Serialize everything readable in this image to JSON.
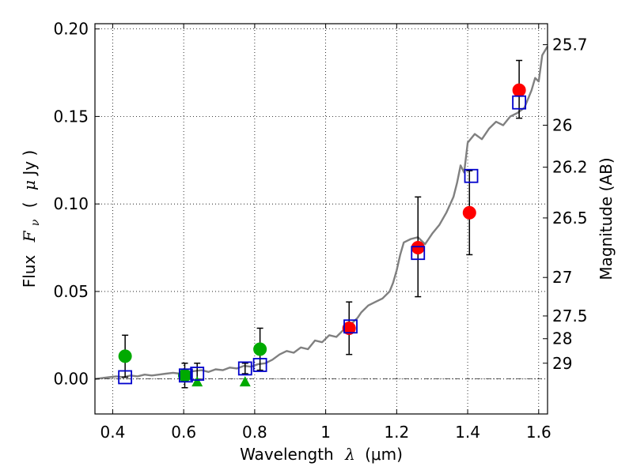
{
  "chart_data": {
    "type": "scatter",
    "xlabel": "Wavelength",
    "xlabel_symbol": "λ",
    "xlabel_unit": "(μm)",
    "ylabel": "Flux",
    "ylabel_symbol": "F",
    "ylabel_symbol_sub": "ν",
    "ylabel_unit_open": "(",
    "ylabel_unit_mu": "μ",
    "ylabel_unit_rest": "Jy )",
    "y2label": "Magnitude (AB)",
    "xlim": [
      0.35,
      1.625
    ],
    "ylim": [
      -0.02,
      0.203
    ],
    "grid": true,
    "x_ticks": [
      0.4,
      0.6,
      0.8,
      1.0,
      1.2,
      1.4,
      1.6
    ],
    "x_tick_labels": [
      "0.4",
      "0.6",
      "0.8",
      "1",
      "1.2",
      "1.4",
      "1.6"
    ],
    "y_ticks": [
      0.0,
      0.05,
      0.1,
      0.15,
      0.2
    ],
    "y_tick_labels": [
      "0.00",
      "0.05",
      "0.10",
      "0.15",
      "0.20"
    ],
    "y2_tick_labels": [
      {
        "label": "25.7",
        "flux": 0.191
      },
      {
        "label": "26",
        "flux": 0.145
      },
      {
        "label": "26.2",
        "flux": 0.121
      },
      {
        "label": "26.5",
        "flux": 0.092
      },
      {
        "label": "27",
        "flux": 0.058
      },
      {
        "label": "27.5",
        "flux": 0.036
      },
      {
        "label": "28",
        "flux": 0.023
      },
      {
        "label": "29",
        "flux": 0.009
      }
    ],
    "zero_line": 0.0,
    "colors": {
      "model": "#808080",
      "red": "#ff0000",
      "green": "#00aa00",
      "blue_box": "#0000cc",
      "errorbar": "#000000"
    },
    "series": [
      {
        "type": "line",
        "x": [
          0.35,
          0.37,
          0.39,
          0.41,
          0.43,
          0.45,
          0.47,
          0.49,
          0.51,
          0.53,
          0.55,
          0.57,
          0.59,
          0.61,
          0.63,
          0.65,
          0.67,
          0.69,
          0.71,
          0.73,
          0.75,
          0.77,
          0.79,
          0.81,
          0.83,
          0.85,
          0.87,
          0.89,
          0.91,
          0.93,
          0.95,
          0.97,
          0.99,
          1.01,
          1.03,
          1.05,
          1.07,
          1.09,
          1.1,
          1.12,
          1.14,
          1.16,
          1.18,
          1.19,
          1.2,
          1.21,
          1.22,
          1.23,
          1.24,
          1.26,
          1.28,
          1.29,
          1.3,
          1.32,
          1.34,
          1.36,
          1.37,
          1.38,
          1.39,
          1.4,
          1.42,
          1.44,
          1.46,
          1.48,
          1.5,
          1.52,
          1.54,
          1.56,
          1.57,
          1.58,
          1.59,
          1.6,
          1.61,
          1.625
        ],
        "y": [
          0.0,
          0.0005,
          0.001,
          0.0015,
          0.001,
          0.002,
          0.0015,
          0.0025,
          0.002,
          0.0025,
          0.003,
          0.0035,
          0.003,
          0.004,
          0.0045,
          0.005,
          0.004,
          0.0055,
          0.005,
          0.0065,
          0.006,
          0.0075,
          0.007,
          0.0085,
          0.009,
          0.011,
          0.014,
          0.016,
          0.015,
          0.018,
          0.017,
          0.022,
          0.021,
          0.025,
          0.024,
          0.028,
          0.031,
          0.035,
          0.038,
          0.042,
          0.044,
          0.046,
          0.05,
          0.055,
          0.062,
          0.071,
          0.078,
          0.079,
          0.08,
          0.081,
          0.077,
          0.08,
          0.083,
          0.088,
          0.095,
          0.104,
          0.112,
          0.122,
          0.118,
          0.135,
          0.14,
          0.137,
          0.143,
          0.147,
          0.145,
          0.15,
          0.152,
          0.155,
          0.16,
          0.165,
          0.172,
          0.17,
          0.185,
          0.19
        ]
      },
      {
        "type": "scatter",
        "marker": "circle",
        "points": [
          {
            "x": 1.066,
            "y": 0.029,
            "yerr": 0.015
          },
          {
            "x": 1.26,
            "y": 0.075,
            "yerr_low": 0.028,
            "yerr_high": 0.029
          },
          {
            "x": 1.405,
            "y": 0.095,
            "yerr_low": 0.024,
            "yerr_high": 0.024
          },
          {
            "x": 1.545,
            "y": 0.165,
            "yerr_low": 0.016,
            "yerr_high": 0.017
          }
        ]
      },
      {
        "type": "scatter",
        "marker": "circle",
        "points": [
          {
            "x": 0.435,
            "y": 0.013,
            "yerr": 0.012
          },
          {
            "x": 0.603,
            "y": 0.002,
            "yerr": 0.007
          },
          {
            "x": 0.815,
            "y": 0.017,
            "yerr": 0.012
          }
        ]
      },
      {
        "type": "scatter",
        "marker": "triangle",
        "points": [
          {
            "x": 0.638,
            "y": -0.002
          },
          {
            "x": 0.773,
            "y": -0.002
          }
        ]
      },
      {
        "type": "scatter",
        "marker": "square",
        "points": [
          {
            "x": 0.435,
            "y": 0.001
          },
          {
            "x": 0.606,
            "y": 0.002
          },
          {
            "x": 0.638,
            "y": 0.003,
            "yerr": 0.006
          },
          {
            "x": 0.773,
            "y": 0.006,
            "yerr": 0.003
          },
          {
            "x": 0.815,
            "y": 0.008
          },
          {
            "x": 1.07,
            "y": 0.03
          },
          {
            "x": 1.26,
            "y": 0.072
          },
          {
            "x": 1.41,
            "y": 0.116
          },
          {
            "x": 1.545,
            "y": 0.158
          }
        ]
      }
    ]
  }
}
